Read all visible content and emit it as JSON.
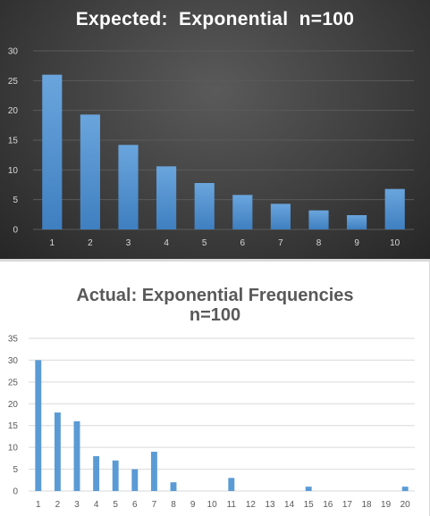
{
  "chart_data": [
    {
      "type": "bar",
      "title": "Expected:  Exponential  n=100",
      "xlabel": "",
      "ylabel": "",
      "categories": [
        "1",
        "2",
        "3",
        "4",
        "5",
        "6",
        "7",
        "8",
        "9",
        "10"
      ],
      "values": [
        26,
        19.3,
        14.2,
        10.6,
        7.8,
        5.8,
        4.3,
        3.2,
        2.4,
        6.8
      ],
      "ylim": [
        0,
        30
      ],
      "yticks": [
        0,
        5,
        10,
        15,
        20,
        25,
        30
      ],
      "grid": true,
      "legend": "none",
      "colors": {
        "background": "#3a3a3a",
        "bar": "#5b9bd5",
        "text": "#ffffff",
        "tick": "#d9d9d9",
        "grid": "#5a5a5a"
      }
    },
    {
      "type": "bar",
      "title": "Actual: Exponential Frequencies",
      "subtitle": "n=100",
      "xlabel": "",
      "ylabel": "",
      "categories": [
        "1",
        "2",
        "3",
        "4",
        "5",
        "6",
        "7",
        "8",
        "9",
        "10",
        "11",
        "12",
        "13",
        "14",
        "15",
        "16",
        "17",
        "18",
        "19",
        "20"
      ],
      "values": [
        30,
        18,
        16,
        8,
        7,
        5,
        9,
        2,
        0,
        0,
        3,
        0,
        0,
        0,
        1,
        0,
        0,
        0,
        0,
        1
      ],
      "ylim": [
        0,
        35
      ],
      "yticks": [
        0,
        5,
        10,
        15,
        20,
        25,
        30,
        35
      ],
      "grid": true,
      "legend": "none",
      "colors": {
        "background": "#ffffff",
        "bar": "#5b9bd5",
        "text": "#595959",
        "tick": "#595959",
        "grid": "#d9d9d9"
      }
    }
  ]
}
